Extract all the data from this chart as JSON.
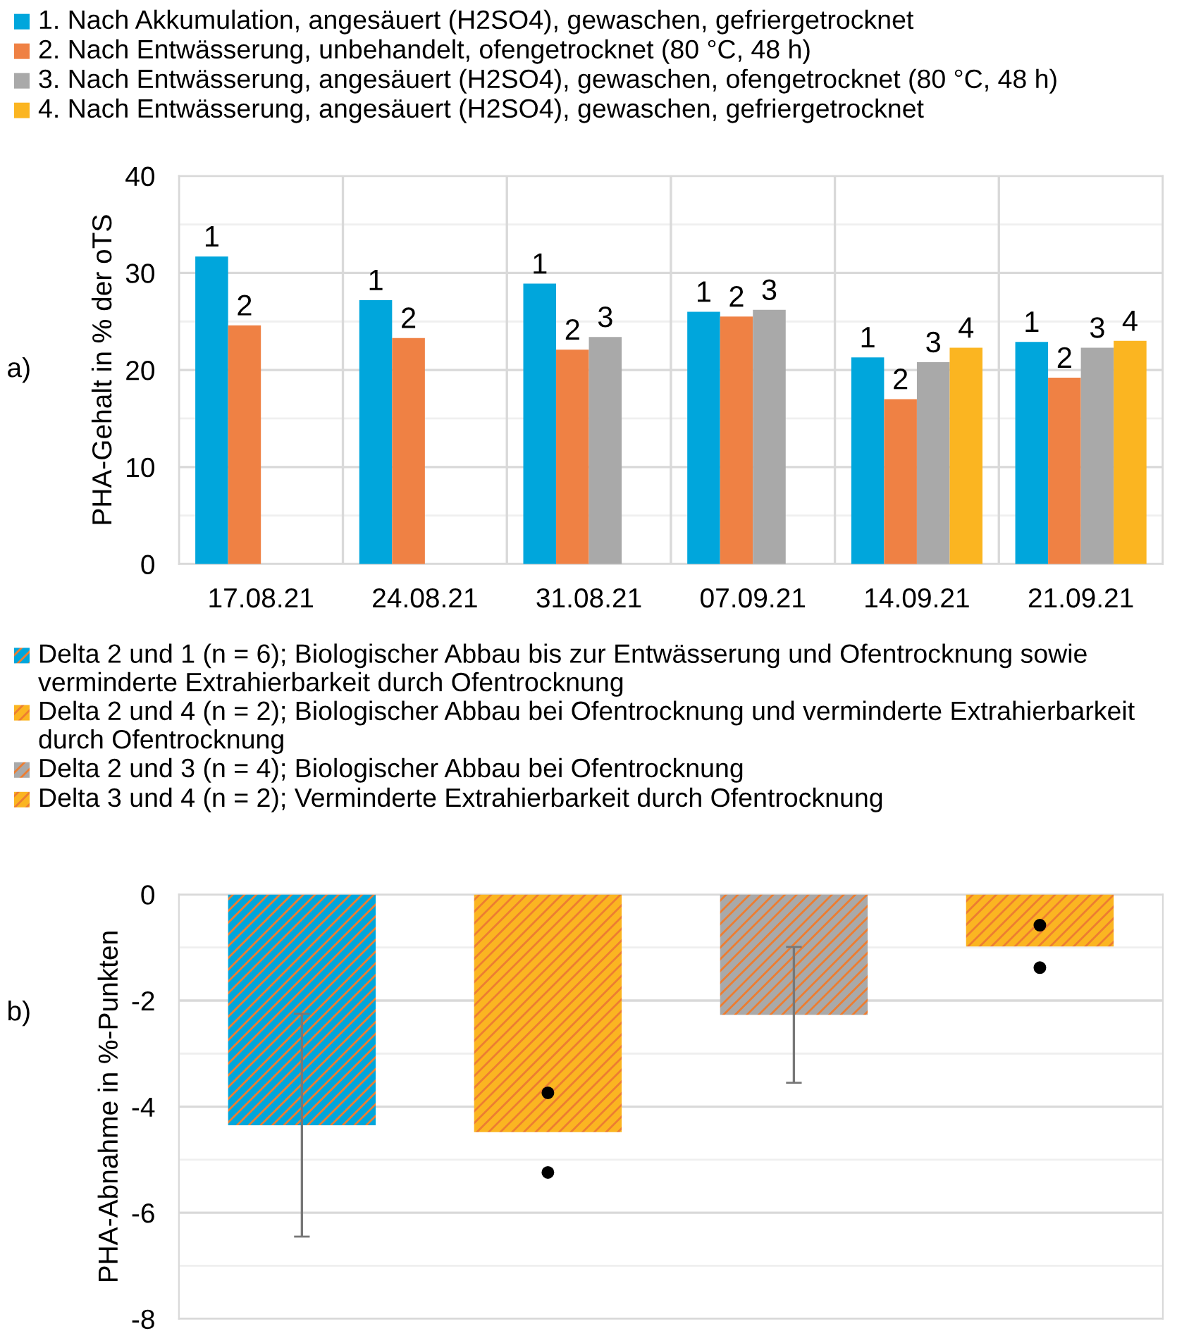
{
  "chart_data": [
    {
      "type": "bar",
      "ylabel": "PHA-Gehalt in % der oTS",
      "annotations": [
        "a)",
        "1",
        "2",
        "1",
        "2",
        "1",
        "2",
        "3",
        "1",
        "2",
        "3",
        "1",
        "2",
        "3",
        "4",
        "1",
        "2",
        "3",
        "4"
      ],
      "categories": [
        "17.08.21",
        "24.08.21",
        "31.08.21",
        "07.09.21",
        "14.09.21",
        "21.09.21"
      ],
      "series": [
        {
          "name": "1. Nach Akkumulation, angesäuert (H2SO4), gewaschen, gefriergetrocknet",
          "color": "#00a6dc",
          "values": [
            31.7,
            27.2,
            28.9,
            26.0,
            21.3,
            22.9
          ]
        },
        {
          "name": "2. Nach Entwässerung, unbehandelt, ofengetrocknet (80 °C, 48 h)",
          "color": "#ef8144",
          "values": [
            24.6,
            23.3,
            22.1,
            25.5,
            17.0,
            19.2
          ]
        },
        {
          "name": "3. Nach Entwässerung, angesäuert (H2SO4), gewaschen, ofengetrocknet (80 °C, 48 h)",
          "color": "#a9a9a9",
          "values": [
            null,
            null,
            23.4,
            26.2,
            20.8,
            22.3
          ]
        },
        {
          "name": "4. Nach Entwässerung, angesäuert (H2SO4), gewaschen, gefriergetrocknet",
          "color": "#fbb521",
          "values": [
            null,
            null,
            null,
            null,
            22.3,
            23.0
          ]
        }
      ],
      "ylim": [
        0,
        40
      ],
      "yticks": [
        0,
        10,
        20,
        30,
        40
      ],
      "grid": true,
      "legend": "top"
    },
    {
      "type": "bar",
      "ylabel": "PHA-Abnahme in %-Punkten",
      "annotations": [
        "b)"
      ],
      "categories": [
        null,
        null,
        null,
        null
      ],
      "series": [
        {
          "name": "Delta 2 und 1 (n = 6); Biologischer Abbau bis zur Entwässerung und Ofentrocknung sowie verminderte Extrahierbarkeit durch Ofentrocknung",
          "color": "#00a6dc",
          "values": [
            -4.35,
            null,
            null,
            null
          ],
          "errors": [
            2.1,
            null,
            null,
            null
          ]
        },
        {
          "name": "Delta 2 und 4 (n = 2); Biologischer Abbau bei Ofentrocknung und verminderte Extrahierbarkeit durch Ofentrocknung",
          "color": "#fbb521",
          "values": [
            null,
            -4.48,
            null,
            null
          ]
        },
        {
          "name": "Delta 2 und 3 (n = 4); Biologischer Abbau bei Ofentrocknung",
          "color": "#a9a9a9",
          "values": [
            null,
            null,
            -2.27,
            null
          ],
          "errors": [
            null,
            null,
            1.28,
            null
          ]
        },
        {
          "name": "Delta 3 und 4 (n = 2); Verminderte Extrahierbarkeit durch Ofentrocknung",
          "color": "#fbb521",
          "values": [
            null,
            null,
            null,
            -0.98
          ]
        },
        {
          "type": "scatter",
          "color": "#000000",
          "values": [
            null,
            -3.74,
            null,
            -0.58
          ],
          "marker": "circle"
        },
        {
          "type": "scatter",
          "color": "#000000",
          "values": [
            null,
            -5.24,
            null,
            -1.38
          ],
          "marker": "circle"
        }
      ],
      "ylim": [
        -8,
        0
      ],
      "yticks": [
        -8,
        -6,
        -4,
        -2,
        0
      ],
      "grid": "y",
      "legend": "top"
    }
  ]
}
